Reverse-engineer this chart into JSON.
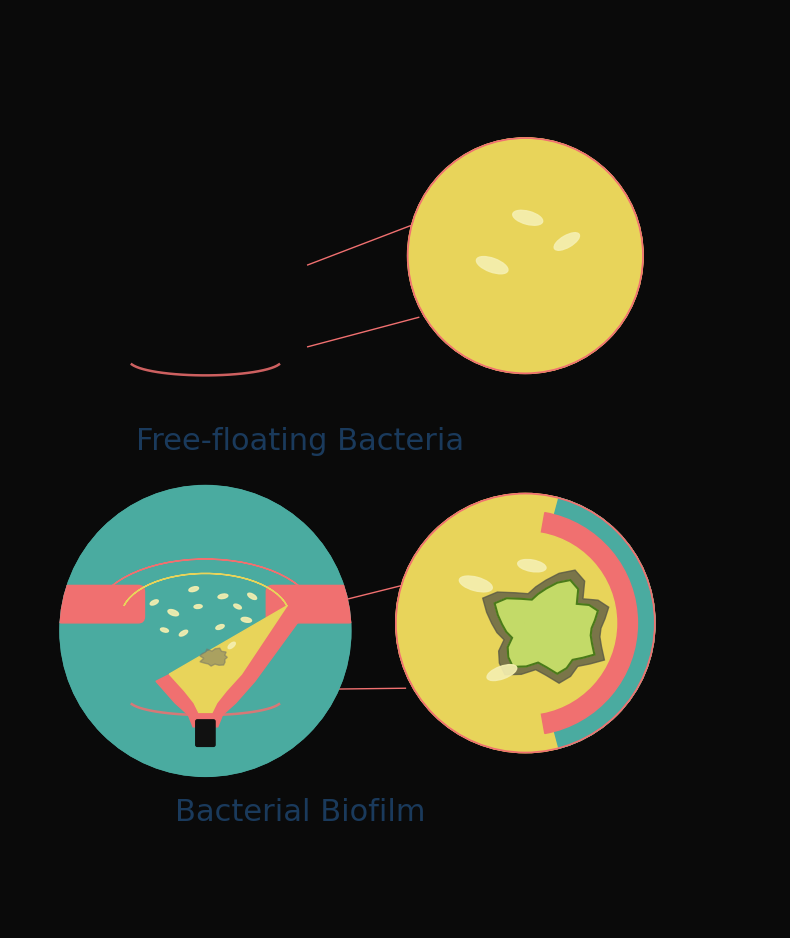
{
  "bg_color": "#0a0a0a",
  "teal": "#4aaba0",
  "pink": "#f07070",
  "yellow": "#e8d45a",
  "light_yellow": "#f5eda0",
  "cream": "#f5efb0",
  "dark": "#1a1a1a",
  "green_biofilm": "#8fbc5a",
  "light_green": "#c8e06a",
  "gray_outline": "#555544",
  "label1": "Free-floating Bacteria",
  "label2": "Bacterial Biofilm",
  "label_color": "#1a3a5c",
  "label_fontsize": 22,
  "pointer_color": "#f07070"
}
